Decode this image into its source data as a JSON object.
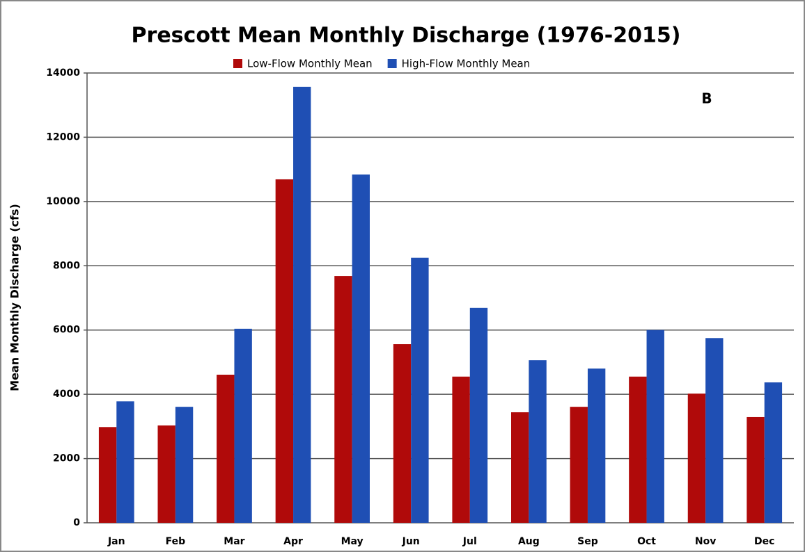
{
  "chart_data": {
    "type": "bar",
    "title": "Prescott Mean Monthly Discharge (1976-2015)",
    "y_label": "Mean Monthly Discharge (cfs)",
    "annotation": "B",
    "categories": [
      "Jan",
      "Feb",
      "Mar",
      "Apr",
      "May",
      "Jun",
      "Jul",
      "Aug",
      "Sep",
      "Oct",
      "Nov",
      "Dec"
    ],
    "series": [
      {
        "name": "Low-Flow Monthly Mean",
        "color": "#b00a0a",
        "values": [
          2980,
          3030,
          4610,
          10690,
          7680,
          5560,
          4550,
          3440,
          3610,
          4550,
          4020,
          3290
        ]
      },
      {
        "name": "High-Flow Monthly Mean",
        "color": "#1f4fb4",
        "values": [
          3780,
          3610,
          6040,
          13570,
          10840,
          8250,
          6690,
          5060,
          4800,
          6000,
          5750,
          4370
        ]
      }
    ],
    "ylim": [
      0,
      14000
    ],
    "yticks": [
      0,
      2000,
      4000,
      6000,
      8000,
      10000,
      12000,
      14000
    ],
    "grid": true,
    "legend": "top"
  }
}
